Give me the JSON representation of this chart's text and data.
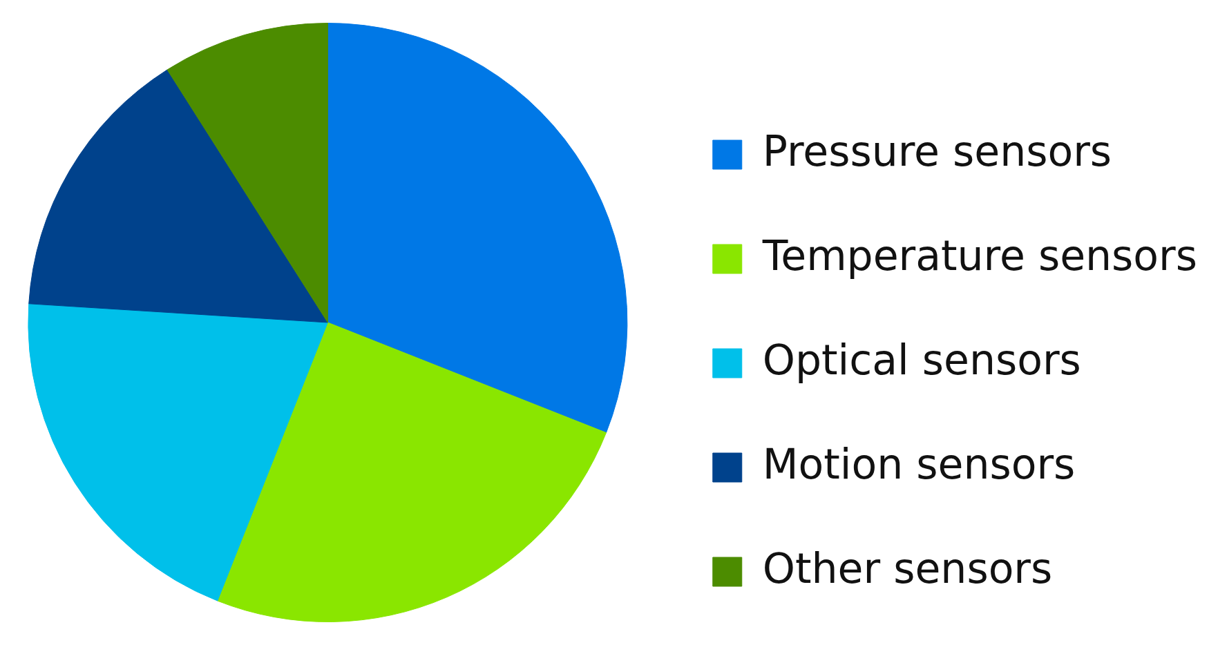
{
  "chart_data": {
    "type": "pie",
    "categories": [
      "Pressure sensors",
      "Temperature sensors",
      "Optical sensors",
      "Motion sensors",
      "Other sensors"
    ],
    "values": [
      31,
      25,
      20,
      15,
      9
    ],
    "colors": [
      "#0078e6",
      "#8ae600",
      "#00c0ea",
      "#00428c",
      "#4c8c00"
    ],
    "legend": "right"
  }
}
